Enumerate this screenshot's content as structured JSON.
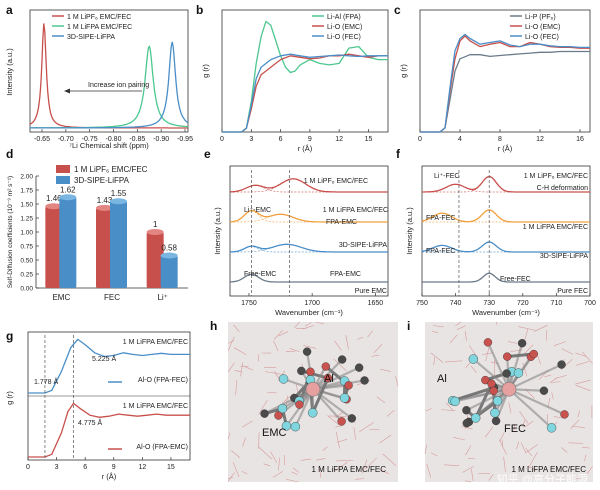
{
  "colors": {
    "red": "#c8504c",
    "green": "#4cc78f",
    "blue": "#4a8ec8",
    "grey": "#6b7b8b",
    "orange": "#f0a040",
    "axis": "#333333",
    "molecule_bg": "#e9e4e4"
  },
  "panels": {
    "a": {
      "letter": "a",
      "legend": [
        "1 M LiPF₆ EMC/FEC",
        "1 M LiFPA EMC/FEC",
        "3D-SIPE-LiFPA"
      ],
      "annotation": "Increase ion pairing",
      "ylabel": "Intensity (a.u.)",
      "xlabel": "⁷Li Chemical shift (ppm)",
      "xticks": [
        "-0.65",
        "-0.70",
        "-0.75",
        "-0.80",
        "-0.85",
        "-0.90",
        "-0.95"
      ]
    },
    "b": {
      "letter": "b",
      "legend": [
        "Li-Al (FPA)",
        "Li-O (EMC)",
        "Li-O (FEC)"
      ],
      "ylabel": "g (r)",
      "xlabel": "r (Å)",
      "xticks": [
        "0",
        "3",
        "6",
        "9",
        "12",
        "15"
      ]
    },
    "c": {
      "letter": "c",
      "legend": [
        "Li-P (PF₆)",
        "Li-O (EMC)",
        "Li-O (FEC)"
      ],
      "ylabel": "g (r)",
      "xlabel": "r (Å)",
      "xticks": [
        "0",
        "4",
        "8",
        "12",
        "16"
      ]
    },
    "d": {
      "letter": "d",
      "legend": [
        "1 M LiPF₆ EMC/FEC",
        "3D-SIPE-LiFPA"
      ],
      "ylabel": "Self-Diffusion coefficients (10⁻⁹ m² s⁻¹)"
    },
    "e": {
      "letter": "e",
      "labels": [
        "1 M LiPF₆ EMC/FEC",
        "Li⁺-EMC",
        "1 M LiFPA EMC/FEC",
        "FPA-EMC",
        "3D-SIPE-LiFPA",
        "Free-EMC",
        "FPA-EMC",
        "Pure EMC"
      ],
      "ylabel": "Intensity (a.u.)",
      "xlabel": "Wavenumber (cm⁻¹)",
      "xticks": [
        "1750",
        "1700",
        "1650"
      ]
    },
    "f": {
      "letter": "f",
      "labels": [
        "Li⁺-FEC",
        "1 M LiPF₆ EMC/FEC",
        "C-H deformation",
        "FPA-FEC",
        "1 M LiFPA EMC/FEC",
        "FPA-FEC",
        "3D-SIPE-LiFPA",
        "Free-FEC",
        "Pure FEC"
      ],
      "ylabel": "Intensity (a.u.)",
      "xlabel": "Wavenumber (cm⁻¹)",
      "xticks": [
        "750",
        "740",
        "730",
        "720",
        "710",
        "700"
      ]
    },
    "g": {
      "letter": "g",
      "labels": [
        "1 M LiFPA EMC/FEC",
        "5.225 Å",
        "1.778 Å",
        "Al-O (FPA-FEC)",
        "1 M LiFPA EMC/FEC",
        "4.775 Å",
        "Al-O (FPA-EMC)"
      ],
      "ylabel": "g (r)",
      "xlabel": "r (Å)",
      "xticks": [
        "0",
        "3",
        "6",
        "9",
        "12",
        "15"
      ]
    },
    "h": {
      "letter": "h",
      "labels": [
        "Al",
        "EMC",
        "1 M LiFPA EMC/FEC"
      ]
    },
    "i": {
      "letter": "i",
      "labels": [
        "Al",
        "FEC",
        "1 M LiFPA EMC/FEC"
      ]
    }
  },
  "watermark": "知乎 @高分子能源",
  "chart_data": [
    {
      "panel": "a",
      "type": "line",
      "xlabel": "⁷Li Chemical shift (ppm)",
      "ylabel": "Intensity (a.u.)",
      "xlim": [
        -0.62,
        -0.97
      ],
      "series": [
        {
          "name": "1 M LiPF₆ EMC/FEC",
          "center": -0.651,
          "width": 0.006,
          "height": 1.0,
          "baseline": 0.0
        },
        {
          "name": "1 M LiFPA EMC/FEC",
          "center": -0.884,
          "width": 0.011,
          "height": 0.78,
          "baseline": 0.28
        },
        {
          "name": "3D-SIPE-LiFPA",
          "center": -0.935,
          "width": 0.009,
          "height": 0.82,
          "baseline": 0.28
        }
      ]
    },
    {
      "panel": "b",
      "type": "line",
      "xlabel": "r (Å)",
      "ylabel": "g (r)",
      "xlim": [
        0,
        17
      ],
      "series": [
        {
          "name": "Li-Al (FPA)",
          "points": [
            [
              0,
              0
            ],
            [
              2,
              0
            ],
            [
              2.5,
              0.05
            ],
            [
              3,
              0.4
            ],
            [
              3.5,
              0.9
            ],
            [
              4,
              1.25
            ],
            [
              4.5,
              1.45
            ],
            [
              5,
              1.4
            ],
            [
              5.5,
              1.2
            ],
            [
              6,
              1.0
            ],
            [
              6.5,
              0.85
            ],
            [
              7,
              0.78
            ],
            [
              7.5,
              0.8
            ],
            [
              8,
              0.88
            ],
            [
              9,
              0.95
            ],
            [
              10,
              0.9
            ],
            [
              11,
              0.88
            ],
            [
              12,
              0.9
            ],
            [
              13,
              1.1
            ],
            [
              14,
              1.12
            ],
            [
              15,
              0.98
            ],
            [
              16,
              0.95
            ],
            [
              17,
              0.95
            ]
          ]
        },
        {
          "name": "Li-O (EMC)",
          "points": [
            [
              0,
              0
            ],
            [
              2,
              0
            ],
            [
              2.5,
              0.05
            ],
            [
              3,
              0.3
            ],
            [
              3.5,
              0.6
            ],
            [
              4,
              0.75
            ],
            [
              5,
              0.85
            ],
            [
              6,
              0.95
            ],
            [
              7,
              1.0
            ],
            [
              8,
              0.98
            ],
            [
              9,
              0.96
            ],
            [
              10,
              0.97
            ],
            [
              11,
              1.0
            ],
            [
              12,
              1.0
            ],
            [
              13,
              1.02
            ],
            [
              14,
              1.0
            ],
            [
              15,
              0.98
            ],
            [
              16,
              1.0
            ],
            [
              17,
              1.0
            ]
          ]
        },
        {
          "name": "Li-O (FEC)",
          "points": [
            [
              0,
              0
            ],
            [
              2,
              0
            ],
            [
              2.5,
              0.05
            ],
            [
              3,
              0.35
            ],
            [
              3.5,
              0.7
            ],
            [
              4,
              0.85
            ],
            [
              5,
              0.95
            ],
            [
              6,
              1.0
            ],
            [
              7,
              1.02
            ],
            [
              8,
              1.0
            ],
            [
              9,
              0.98
            ],
            [
              10,
              0.99
            ],
            [
              11,
              1.0
            ],
            [
              12,
              1.01
            ],
            [
              13,
              1.0
            ],
            [
              14,
              0.99
            ],
            [
              15,
              1.0
            ],
            [
              16,
              1.0
            ],
            [
              17,
              1.0
            ]
          ]
        }
      ]
    },
    {
      "panel": "c",
      "type": "line",
      "xlabel": "r (Å)",
      "ylabel": "g (r)",
      "xlim": [
        0,
        17
      ],
      "series": [
        {
          "name": "Li-P (PF₆)",
          "points": [
            [
              0,
              0
            ],
            [
              2,
              0
            ],
            [
              2.5,
              0.05
            ],
            [
              3,
              0.4
            ],
            [
              3.5,
              0.75
            ],
            [
              4,
              0.9
            ],
            [
              5,
              0.95
            ],
            [
              6,
              0.95
            ],
            [
              7,
              0.93
            ],
            [
              8,
              0.94
            ],
            [
              9,
              0.95
            ],
            [
              10,
              0.96
            ],
            [
              11,
              0.97
            ],
            [
              12,
              0.98
            ],
            [
              13,
              0.98
            ],
            [
              14,
              0.99
            ],
            [
              15,
              0.99
            ],
            [
              16,
              0.99
            ],
            [
              17,
              0.99
            ]
          ]
        },
        {
          "name": "Li-O (EMC)",
          "points": [
            [
              0,
              0
            ],
            [
              2,
              0
            ],
            [
              2.5,
              0.05
            ],
            [
              3,
              0.5
            ],
            [
              3.5,
              0.9
            ],
            [
              4,
              1.12
            ],
            [
              4.5,
              1.18
            ],
            [
              5,
              1.12
            ],
            [
              6,
              1.05
            ],
            [
              7,
              1.08
            ],
            [
              8,
              1.1
            ],
            [
              9,
              1.05
            ],
            [
              10,
              1.05
            ],
            [
              11,
              1.1
            ],
            [
              12,
              1.08
            ],
            [
              13,
              1.05
            ],
            [
              14,
              1.04
            ],
            [
              15,
              1.04
            ],
            [
              16,
              1.03
            ],
            [
              17,
              1.03
            ]
          ]
        },
        {
          "name": "Li-O (FEC)",
          "points": [
            [
              0,
              0
            ],
            [
              2,
              0
            ],
            [
              2.5,
              0.05
            ],
            [
              3,
              0.55
            ],
            [
              3.5,
              1.0
            ],
            [
              4,
              1.15
            ],
            [
              4.5,
              1.2
            ],
            [
              5,
              1.15
            ],
            [
              6,
              1.08
            ],
            [
              7,
              1.1
            ],
            [
              8,
              1.12
            ],
            [
              9,
              1.07
            ],
            [
              10,
              1.05
            ],
            [
              11,
              1.08
            ],
            [
              12,
              1.08
            ],
            [
              13,
              1.06
            ],
            [
              14,
              1.05
            ],
            [
              15,
              1.05
            ],
            [
              16,
              1.04
            ],
            [
              17,
              1.04
            ]
          ]
        }
      ]
    },
    {
      "panel": "d",
      "type": "bar",
      "ylabel": "Self-Diffusion coefficients (10⁻⁹ m² s⁻¹)",
      "categories": [
        "EMC",
        "FEC",
        "Li⁺"
      ],
      "yticks": [
        "0.00",
        "0.25",
        "0.50",
        "0.75",
        "1.00",
        "1.25",
        "1.50",
        "1.75",
        "2.00"
      ],
      "ylim": [
        0,
        2.0
      ],
      "series": [
        {
          "name": "1 M LiPF₆ EMC/FEC",
          "values": [
            1.46,
            1.43,
            1.0
          ],
          "labels": [
            "1.46",
            "1.43",
            "1"
          ]
        },
        {
          "name": "3D-SIPE-LiFPA",
          "values": [
            1.62,
            1.55,
            0.58
          ],
          "labels": [
            "1.62",
            "1.55",
            "0.58"
          ]
        }
      ]
    },
    {
      "panel": "e",
      "type": "line",
      "xlabel": "Wavenumber (cm⁻¹)",
      "ylabel": "Intensity (a.u.)",
      "xlim": [
        1765,
        1640
      ],
      "series": [
        {
          "name": "1 M LiPF₆ EMC/FEC",
          "offset": 3,
          "peaks": [
            [
              1745,
              0.3,
              10
            ],
            [
              1715,
              0.6,
              14
            ]
          ]
        },
        {
          "name": "1 M LiFPA EMC/FEC",
          "offset": 2,
          "peaks": [
            [
              1748,
              0.5,
              8
            ],
            [
              1725,
              0.35,
              14
            ]
          ]
        },
        {
          "name": "3D-SIPE-LiFPA",
          "offset": 1,
          "peaks": [
            [
              1748,
              0.25,
              8
            ],
            [
              1720,
              0.35,
              16
            ]
          ]
        },
        {
          "name": "Pure EMC",
          "offset": 0,
          "peaks": [
            [
              1748,
              0.35,
              8
            ]
          ]
        }
      ]
    },
    {
      "panel": "f",
      "type": "line",
      "xlabel": "Wavenumber (cm⁻¹)",
      "ylabel": "Intensity (a.u.)",
      "xlim": [
        750,
        700
      ],
      "series": [
        {
          "name": "1 M LiPF₆ EMC/FEC",
          "offset": 3,
          "peaks": [
            [
              740,
              0.35,
              4
            ],
            [
              730,
              0.7,
              3
            ]
          ]
        },
        {
          "name": "1 M LiFPA EMC/FEC",
          "offset": 2,
          "peaks": [
            [
              744,
              0.4,
              4
            ],
            [
              730,
              0.55,
              3
            ]
          ]
        },
        {
          "name": "3D-SIPE-LiFPA",
          "offset": 1,
          "peaks": [
            [
              744,
              0.3,
              4
            ],
            [
              730,
              0.45,
              3
            ]
          ]
        },
        {
          "name": "Pure FEC",
          "offset": 0,
          "peaks": [
            [
              730,
              0.4,
              2.5
            ]
          ]
        }
      ]
    },
    {
      "panel": "g",
      "type": "line",
      "xlabel": "r (Å)",
      "ylabel": "g (r)",
      "xlim": [
        0,
        17
      ],
      "series": [
        {
          "name": "Al-O (FPA-FEC)",
          "points": [
            [
              0,
              0
            ],
            [
              1.778,
              0
            ],
            [
              2.5,
              0.05
            ],
            [
              3.5,
              0.4
            ],
            [
              4.5,
              0.85
            ],
            [
              5.225,
              1.0
            ],
            [
              6,
              0.9
            ],
            [
              7,
              0.75
            ],
            [
              8,
              0.68
            ],
            [
              9,
              0.7
            ],
            [
              10,
              0.75
            ],
            [
              11,
              0.72
            ],
            [
              12,
              0.7
            ],
            [
              13,
              0.72
            ],
            [
              14,
              0.74
            ],
            [
              15,
              0.72
            ],
            [
              16,
              0.72
            ],
            [
              17,
              0.72
            ]
          ]
        },
        {
          "name": "Al-O (FPA-EMC)",
          "points": [
            [
              0,
              0
            ],
            [
              1.778,
              0
            ],
            [
              2.5,
              0.05
            ],
            [
              3.5,
              0.45
            ],
            [
              4.2,
              0.85
            ],
            [
              4.775,
              1.0
            ],
            [
              5.5,
              0.9
            ],
            [
              6.5,
              0.78
            ],
            [
              7.5,
              0.74
            ],
            [
              8.5,
              0.76
            ],
            [
              9.5,
              0.8
            ],
            [
              10.5,
              0.78
            ],
            [
              11.5,
              0.76
            ],
            [
              12.5,
              0.78
            ],
            [
              13.5,
              0.8
            ],
            [
              14.5,
              0.78
            ],
            [
              15.5,
              0.78
            ],
            [
              17,
              0.78
            ]
          ]
        }
      ]
    }
  ]
}
